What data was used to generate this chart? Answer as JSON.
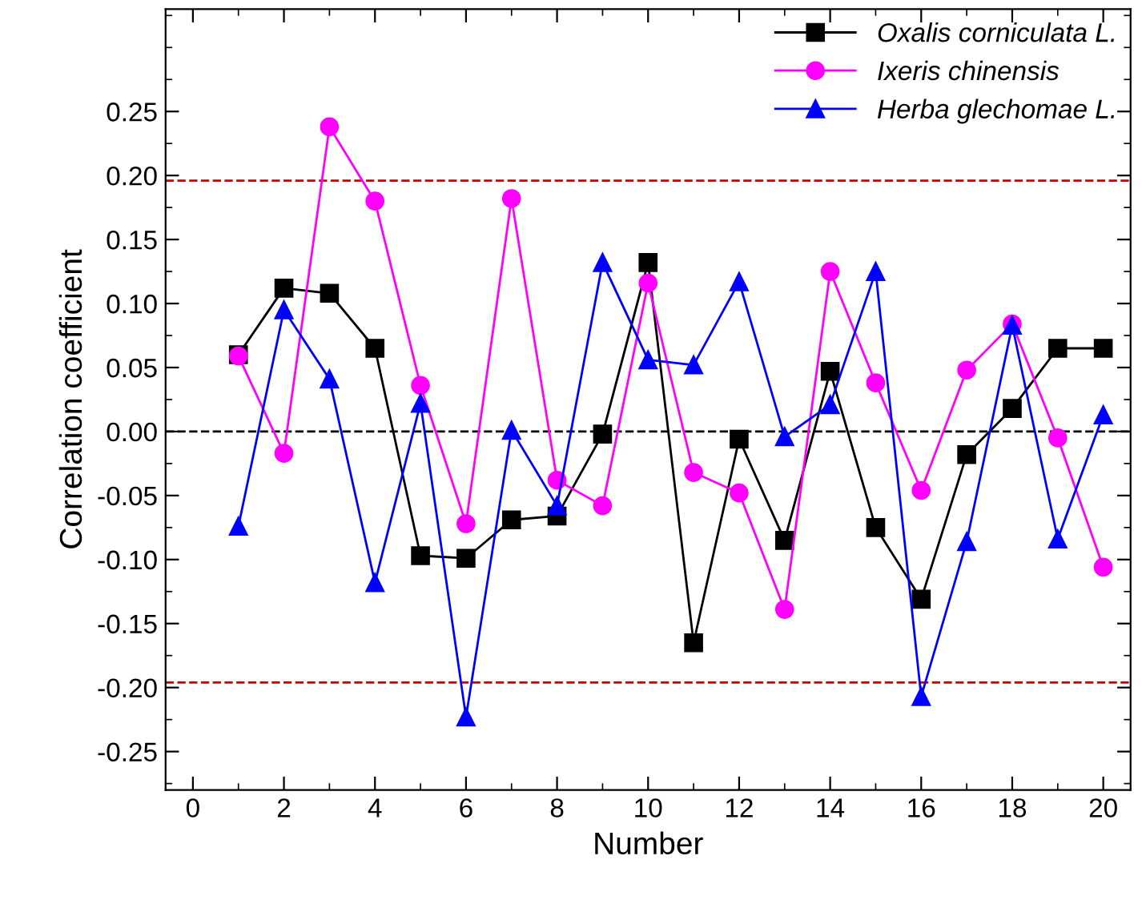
{
  "chart_data": {
    "type": "line",
    "xlabel": "Number",
    "ylabel": "Correlation coefficient",
    "x": [
      1,
      2,
      3,
      4,
      5,
      6,
      7,
      8,
      9,
      10,
      11,
      12,
      13,
      14,
      15,
      16,
      17,
      18,
      19,
      20
    ],
    "series": [
      {
        "name": "Oxalis corniculata L.",
        "color": "#000000",
        "marker": "square",
        "values": [
          0.06,
          0.112,
          0.108,
          0.065,
          -0.097,
          -0.099,
          -0.069,
          -0.066,
          -0.002,
          0.132,
          -0.165,
          -0.006,
          -0.085,
          0.047,
          -0.075,
          -0.131,
          -0.018,
          0.018,
          0.065,
          0.065
        ]
      },
      {
        "name": "Ixeris chinensis",
        "color": "#ff00ff",
        "marker": "circle",
        "values": [
          0.059,
          -0.017,
          0.238,
          0.18,
          0.036,
          -0.072,
          0.182,
          -0.038,
          -0.058,
          0.116,
          -0.032,
          -0.048,
          -0.139,
          0.125,
          0.038,
          -0.046,
          0.048,
          0.084,
          -0.005,
          -0.106
        ]
      },
      {
        "name": "Herba glechomae L.",
        "color": "#0000ff",
        "marker": "triangle",
        "values": [
          -0.074,
          0.095,
          0.041,
          -0.118,
          0.022,
          -0.223,
          0.001,
          -0.058,
          0.132,
          0.056,
          0.052,
          0.117,
          -0.004,
          0.021,
          0.125,
          -0.207,
          -0.086,
          0.083,
          -0.084,
          0.013
        ]
      }
    ],
    "xlim": [
      -0.6,
      20.6
    ],
    "xticks": [
      0,
      2,
      4,
      6,
      8,
      10,
      12,
      14,
      16,
      18,
      20
    ],
    "ylim": [
      -0.28,
      0.33
    ],
    "yticks": [
      {
        "value": -0.25,
        "label": "-0.25"
      },
      {
        "value": -0.2,
        "label": "-0.20"
      },
      {
        "value": -0.15,
        "label": "-0.15"
      },
      {
        "value": -0.1,
        "label": "-0.10"
      },
      {
        "value": -0.05,
        "label": "-0.05"
      },
      {
        "value": 0,
        "label": "0.00"
      },
      {
        "value": 0.05,
        "label": "0.05"
      },
      {
        "value": 0.1,
        "label": "0.10"
      },
      {
        "value": 0.15,
        "label": "0.15"
      },
      {
        "value": 0.2,
        "label": "0.20"
      },
      {
        "value": 0.25,
        "label": "0.25"
      }
    ],
    "ref_lines": [
      {
        "axis": "y",
        "value": 0.196,
        "color": "#cc0000",
        "line_style": "dashed"
      },
      {
        "axis": "y",
        "value": -0.196,
        "color": "#cc0000",
        "line_style": "dashed"
      },
      {
        "axis": "y",
        "value": 0,
        "color": "#000000",
        "line_style": "dashed"
      }
    ],
    "grid": false,
    "legend": "top right",
    "line_style": "solid"
  }
}
